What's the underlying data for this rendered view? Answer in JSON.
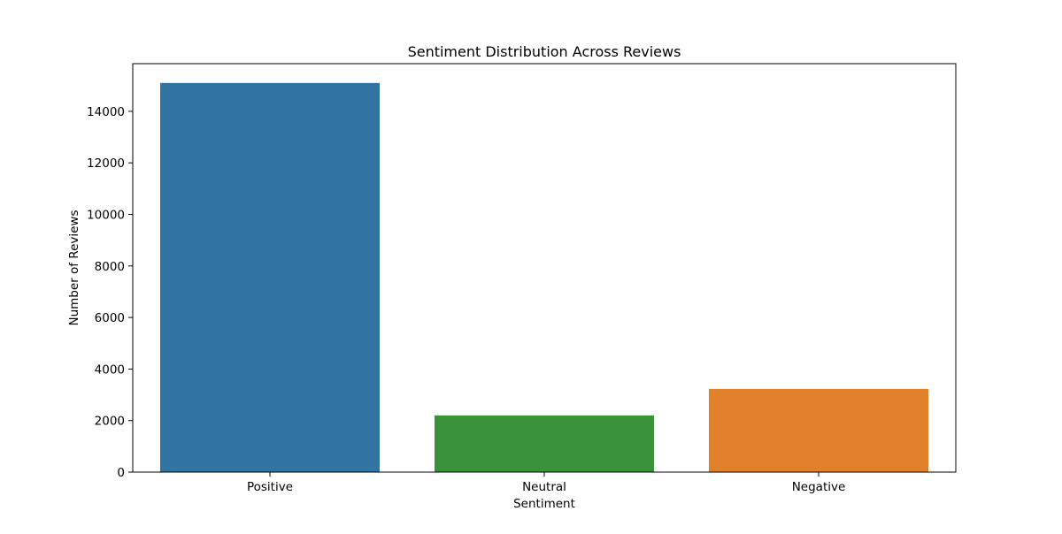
{
  "chart_data": {
    "type": "bar",
    "title": "Sentiment Distribution Across Reviews",
    "xlabel": "Sentiment",
    "ylabel": "Number of Reviews",
    "categories": [
      "Positive",
      "Neutral",
      "Negative"
    ],
    "values": [
      15100,
      2200,
      3230
    ],
    "colors": [
      "#3274a1",
      "#3a923a",
      "#e1812c"
    ],
    "ylim": [
      0,
      15850
    ],
    "yticks": [
      0,
      2000,
      4000,
      6000,
      8000,
      10000,
      12000,
      14000
    ],
    "grid": false,
    "legend": "none"
  }
}
